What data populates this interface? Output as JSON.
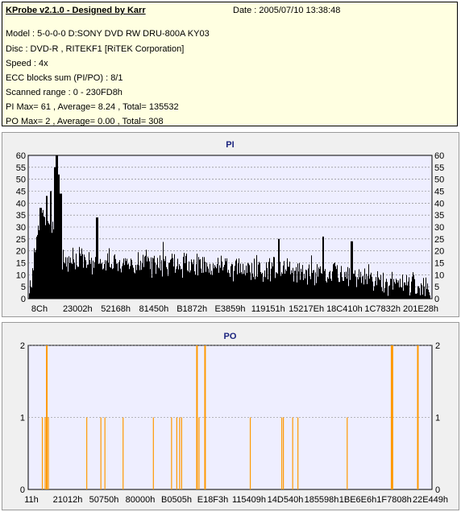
{
  "header": {
    "title": "KProbe v2.1.0 - Designed by Karr",
    "date": "Date : 2005/07/10 13:38:48",
    "lines": [
      "Model : 5-0-0-0 D:SONY    DVD RW DRU-800A  KY03",
      "Disc : DVD-R , RITEKF1 [RiTEK Corporation]",
      "Speed : 4x",
      "ECC blocks sum (PI/PO) : 8/1",
      "Scanned range : 0 - 230FD8h",
      "PI Max= 61 , Average= 8.24 , Total= 135532",
      "PO Max= 2 , Average= 0.00 , Total= 308"
    ]
  },
  "colors": {
    "info_bg": "#ffffe1",
    "plot_bg": "#eeeeff",
    "pi_bars": "#000000",
    "po_bars": "#ff9900",
    "title": "#1a237e",
    "grid": "#7a7a7a"
  },
  "chart_data": [
    {
      "type": "bar",
      "title": "PI",
      "xlabel": "",
      "ylabel": "",
      "xlim_hex": [
        "8C",
        "230FD8"
      ],
      "ylim": [
        0,
        60
      ],
      "yticks": [
        0,
        5,
        10,
        15,
        20,
        25,
        30,
        35,
        40,
        45,
        50,
        55,
        60
      ],
      "xtick_labels": [
        "8Ch",
        "23002h",
        "52168h",
        "81450h",
        "B1872h",
        "E3859h",
        "119151h",
        "15217Eh",
        "18C410h",
        "1C7832h",
        "201E28h"
      ],
      "profile": {
        "points": [
          [
            0,
            0
          ],
          [
            0.03,
            36
          ],
          [
            0.065,
            35
          ],
          [
            0.08,
            18
          ],
          [
            0.1,
            18
          ],
          [
            0.2,
            16
          ],
          [
            0.35,
            17
          ],
          [
            0.5,
            15
          ],
          [
            0.62,
            14
          ],
          [
            0.75,
            12
          ],
          [
            0.85,
            10
          ],
          [
            0.93,
            8
          ],
          [
            1.0,
            5
          ]
        ],
        "noise": 5,
        "peaks": [
          [
            0.03,
            38
          ],
          [
            0.045,
            43
          ],
          [
            0.055,
            45
          ],
          [
            0.065,
            55
          ],
          [
            0.07,
            61
          ],
          [
            0.075,
            52
          ],
          [
            0.08,
            44
          ],
          [
            0.17,
            34
          ],
          [
            0.62,
            25
          ],
          [
            0.73,
            26
          ],
          [
            0.8,
            24
          ]
        ]
      },
      "grid": true
    },
    {
      "type": "bar",
      "title": "PO",
      "xlabel": "",
      "ylabel": "",
      "xlim_hex": [
        "11",
        "22E449"
      ],
      "ylim": [
        0,
        2
      ],
      "yticks": [
        0,
        1,
        2
      ],
      "xtick_labels": [
        "11h",
        "21012h",
        "50750h",
        "80000h",
        "B0505h",
        "E18F3h",
        "115409h",
        "14D540h",
        "185598h",
        "1BE6E6h",
        "1F7808h",
        "22E449h"
      ],
      "bars": [
        {
          "x": 0.035,
          "value": 1
        },
        {
          "x": 0.042,
          "value": 1
        },
        {
          "x": 0.046,
          "value": 2
        },
        {
          "x": 0.05,
          "value": 1
        },
        {
          "x": 0.145,
          "value": 1
        },
        {
          "x": 0.18,
          "value": 1
        },
        {
          "x": 0.19,
          "value": 1
        },
        {
          "x": 0.235,
          "value": 1
        },
        {
          "x": 0.31,
          "value": 1
        },
        {
          "x": 0.355,
          "value": 1
        },
        {
          "x": 0.368,
          "value": 1
        },
        {
          "x": 0.375,
          "value": 1
        },
        {
          "x": 0.38,
          "value": 1
        },
        {
          "x": 0.418,
          "value": 2
        },
        {
          "x": 0.423,
          "value": 1
        },
        {
          "x": 0.438,
          "value": 2
        },
        {
          "x": 0.55,
          "value": 1
        },
        {
          "x": 0.628,
          "value": 1
        },
        {
          "x": 0.632,
          "value": 1
        },
        {
          "x": 0.655,
          "value": 1
        },
        {
          "x": 0.668,
          "value": 1
        },
        {
          "x": 0.79,
          "value": 1
        },
        {
          "x": 0.9,
          "value": 2
        },
        {
          "x": 0.902,
          "value": 2
        },
        {
          "x": 0.965,
          "value": 2
        }
      ],
      "grid": true
    }
  ]
}
